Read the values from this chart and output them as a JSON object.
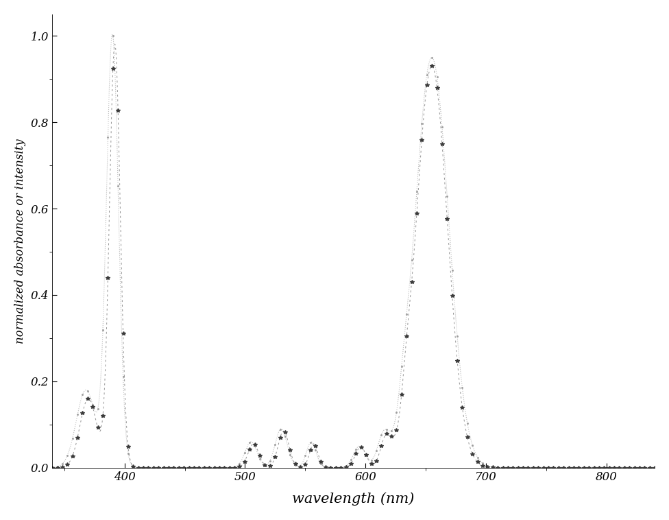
{
  "title": "",
  "xlabel": "wavelength (nm)",
  "ylabel": "normalized absorbance or intensity",
  "xlim": [
    340,
    840
  ],
  "ylim": [
    0.0,
    1.05
  ],
  "yticks": [
    0.0,
    0.2,
    0.4,
    0.6,
    0.8,
    1.0
  ],
  "xticks": [
    400,
    500,
    600,
    700,
    800
  ],
  "background_color": "#ffffff",
  "line_color1": "#aaaaaa",
  "line_color2": "#555555",
  "figsize": [
    9.76,
    7.58
  ],
  "dpi": 100
}
